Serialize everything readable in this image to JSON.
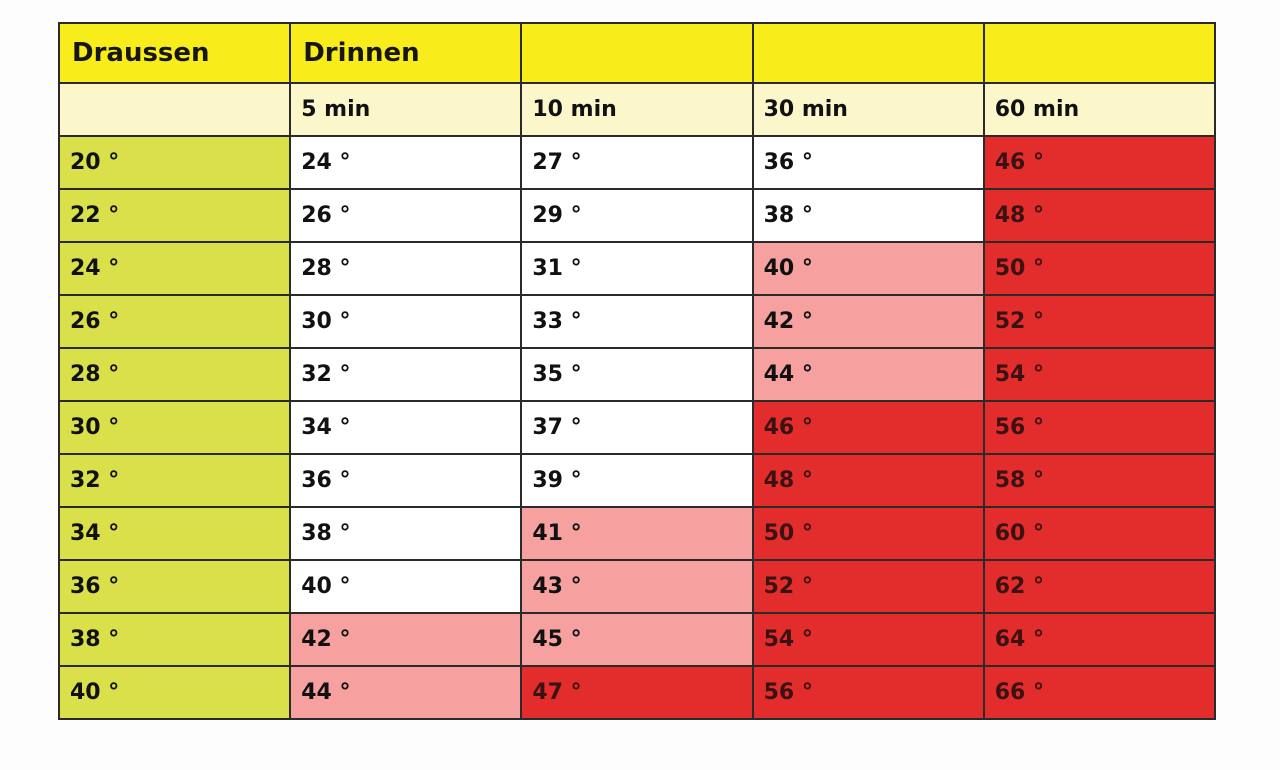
{
  "header": {
    "outside_label": "Draussen",
    "inside_label": "Drinnen"
  },
  "time_columns": [
    "5 min",
    "10 min",
    "30 min",
    "60 min"
  ],
  "rows": [
    {
      "outside": "20 °",
      "values": [
        "24 °",
        "27 °",
        "36 °",
        "46 °"
      ],
      "levels": [
        "normal",
        "normal",
        "normal",
        "danger"
      ]
    },
    {
      "outside": "22 °",
      "values": [
        "26 °",
        "29 °",
        "38 °",
        "48 °"
      ],
      "levels": [
        "normal",
        "normal",
        "normal",
        "danger"
      ]
    },
    {
      "outside": "24 °",
      "values": [
        "28 °",
        "31 °",
        "40 °",
        "50 °"
      ],
      "levels": [
        "normal",
        "normal",
        "warning",
        "danger"
      ]
    },
    {
      "outside": "26 °",
      "values": [
        "30 °",
        "33 °",
        "42 °",
        "52 °"
      ],
      "levels": [
        "normal",
        "normal",
        "warning",
        "danger"
      ]
    },
    {
      "outside": "28 °",
      "values": [
        "32 °",
        "35 °",
        "44 °",
        "54 °"
      ],
      "levels": [
        "normal",
        "normal",
        "warning",
        "danger"
      ]
    },
    {
      "outside": "30 °",
      "values": [
        "34 °",
        "37 °",
        "46 °",
        "56 °"
      ],
      "levels": [
        "normal",
        "normal",
        "danger",
        "danger"
      ]
    },
    {
      "outside": "32 °",
      "values": [
        "36 °",
        "39 °",
        "48 °",
        "58 °"
      ],
      "levels": [
        "normal",
        "normal",
        "danger",
        "danger"
      ]
    },
    {
      "outside": "34 °",
      "values": [
        "38 °",
        "41 °",
        "50 °",
        "60 °"
      ],
      "levels": [
        "normal",
        "warning",
        "danger",
        "danger"
      ]
    },
    {
      "outside": "36 °",
      "values": [
        "40 °",
        "43 °",
        "52 °",
        "62 °"
      ],
      "levels": [
        "normal",
        "warning",
        "danger",
        "danger"
      ]
    },
    {
      "outside": "38 °",
      "values": [
        "42 °",
        "45 °",
        "54 °",
        "64 °"
      ],
      "levels": [
        "warning",
        "warning",
        "danger",
        "danger"
      ]
    },
    {
      "outside": "40 °",
      "values": [
        "44 °",
        "47 °",
        "56 °",
        "66 °"
      ],
      "levels": [
        "warning",
        "danger",
        "danger",
        "danger"
      ]
    }
  ],
  "colors": {
    "header_yellow": "#f8ec1b",
    "subheader_cream": "#fbf7cb",
    "outside_column_lime": "#d9e04a",
    "normal_white": "#ffffff",
    "warning_pink": "#f6a0a0",
    "danger_red": "#e32c2c"
  }
}
